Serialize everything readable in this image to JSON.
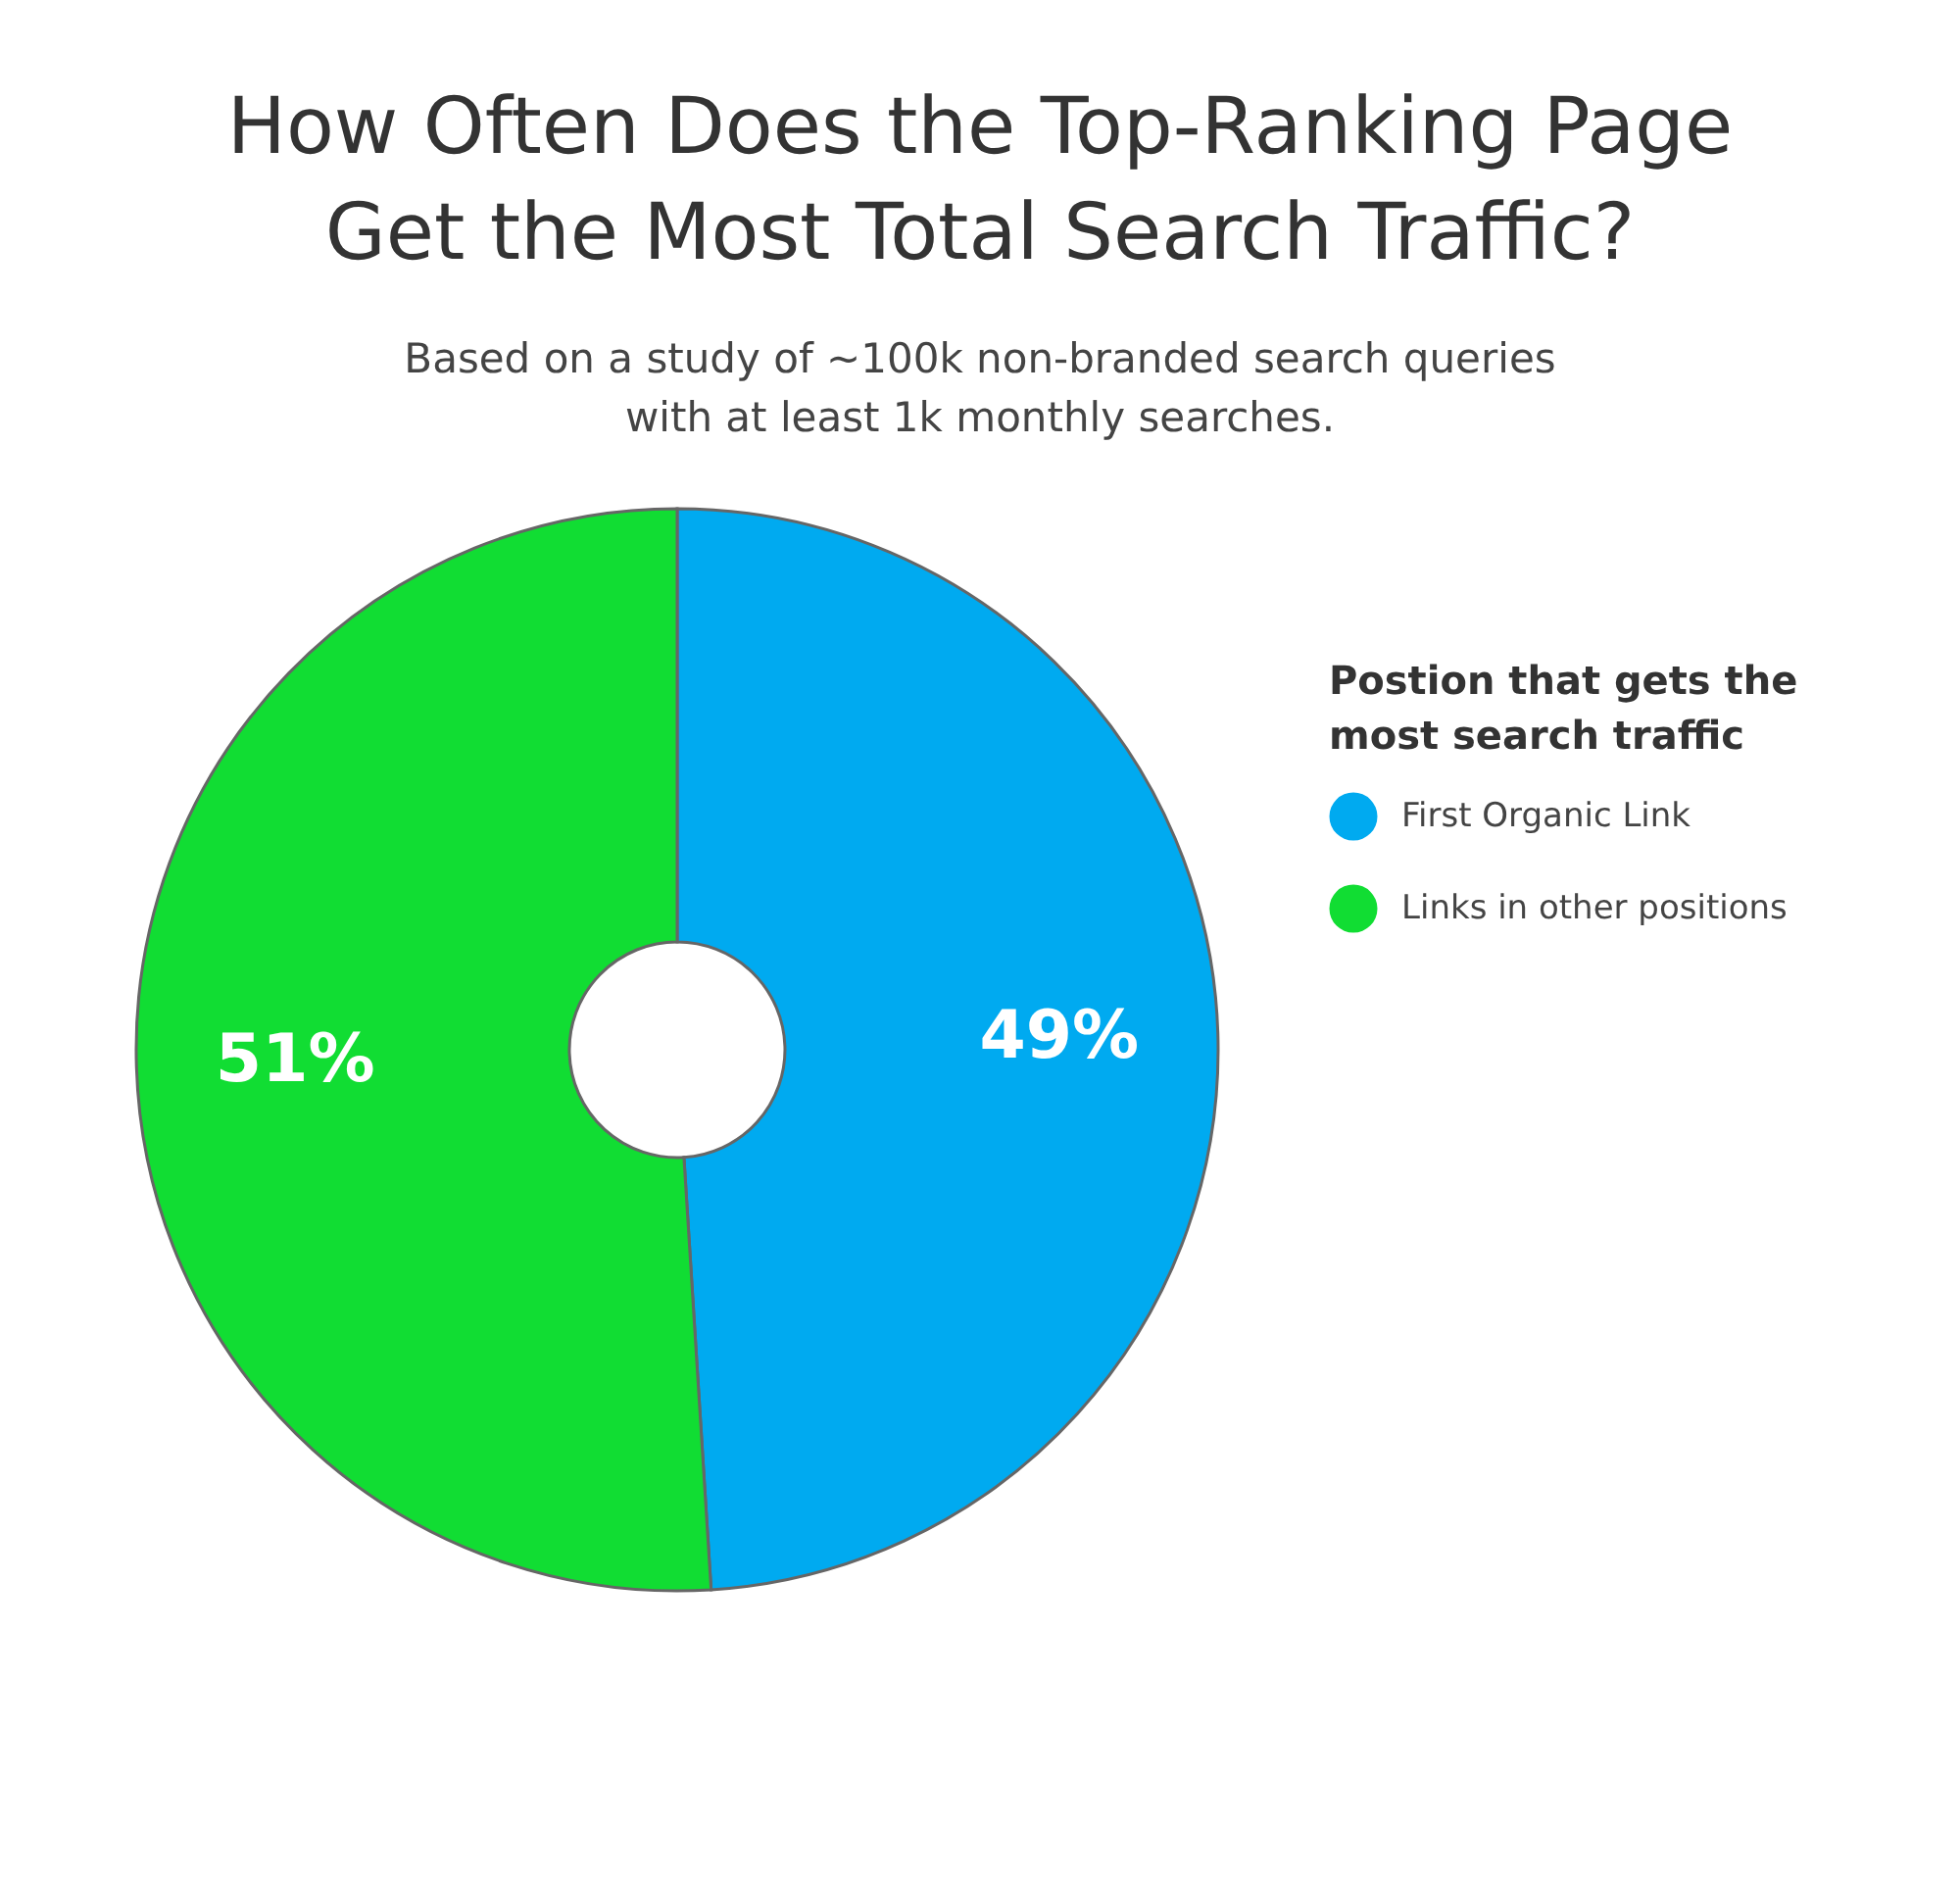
{
  "chart_data": {
    "type": "donut",
    "title": "How Often Does the Top-Ranking Page Get the Most Total Search Traffic?",
    "subtitle": "Based on a study of ~100k non-branded search queries with at least 1k monthly searches.",
    "legend_title": "Postion that gets the most search traffic",
    "categories": [
      "First Organic Link",
      "Links in other positions"
    ],
    "values": [
      49,
      51
    ],
    "colors": [
      "#00aaf0",
      "#11dd33"
    ],
    "value_labels": [
      "49%",
      "51%"
    ],
    "legend": "right"
  }
}
